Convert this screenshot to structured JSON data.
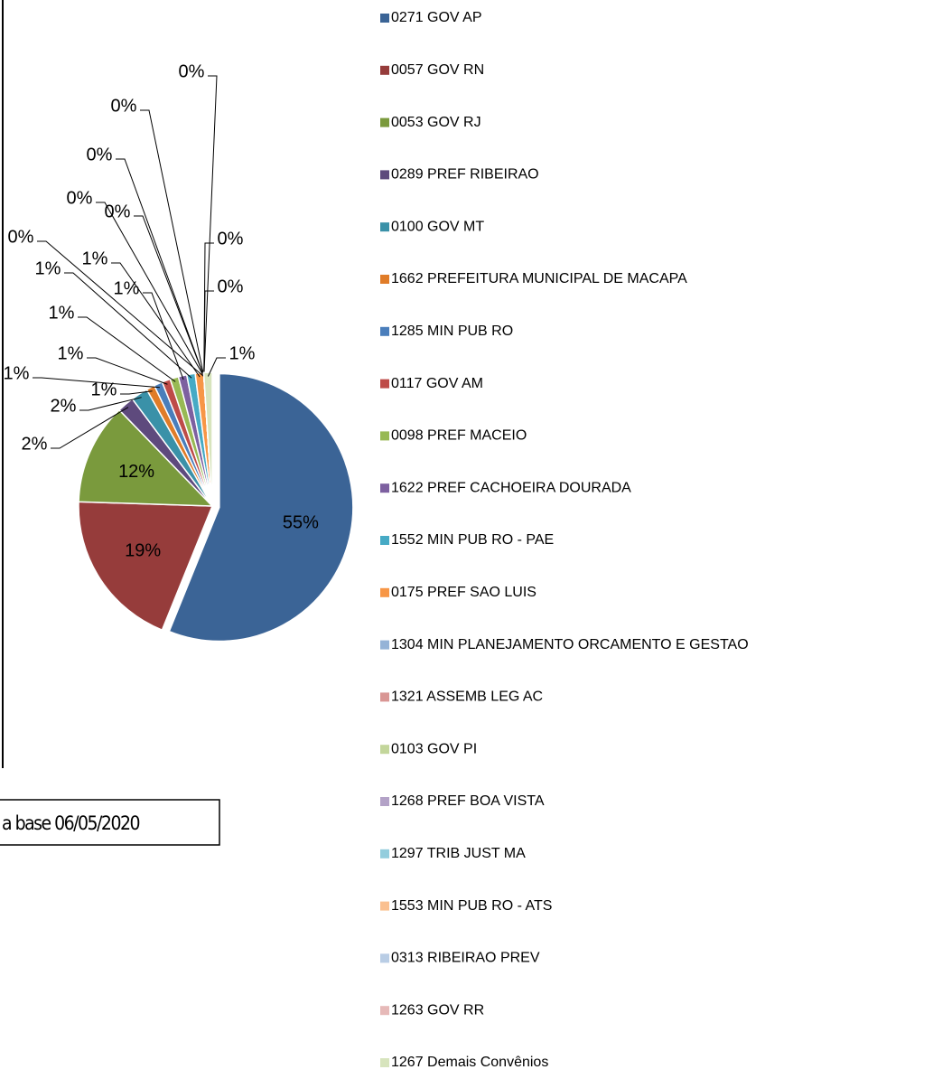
{
  "chart_data": {
    "type": "pie",
    "categories": [
      "0271 GOV AP",
      "0057 GOV RN",
      "0053 GOV RJ",
      "0289 PREF RIBEIRAO",
      "0100 GOV MT",
      "1662 PREFEITURA MUNICIPAL DE MACAPA",
      "1285 MIN PUB RO",
      "0117 GOV AM",
      "0098 PREF MACEIO",
      "1622 PREF CACHOEIRA DOURADA",
      "1552 MIN PUB RO - PAE",
      "0175 PREF SAO LUIS",
      "1304 MIN PLANEJAMENTO ORCAMENTO E GESTAO",
      "1321 ASSEMB LEG AC",
      "0103 GOV PI",
      "1268 PREF BOA VISTA",
      "1297 TRIB JUST MA",
      "1553 MIN PUB RO - ATS",
      "0313 RIBEIRAO PREV",
      "1263 GOV RR",
      "1267 Demais Convênios"
    ],
    "values": [
      55,
      19,
      12,
      2,
      2,
      1,
      1,
      1,
      1,
      1,
      1,
      1,
      0,
      0,
      0,
      0,
      0,
      0,
      0,
      0,
      1
    ],
    "value_labels": [
      "55%",
      "19%",
      "12%",
      "2%",
      "2%",
      "1%",
      "1%",
      "1%",
      "1%",
      "1%",
      "1%",
      "1%",
      "0%",
      "0%",
      "0%",
      "0%",
      "0%",
      "0%",
      "0%",
      "0%",
      "1%"
    ],
    "colors": [
      "#3b6496",
      "#963c3b",
      "#7a9a3d",
      "#5e4a7d",
      "#3a91a8",
      "#e07c28",
      "#4a7ebb",
      "#be4b48",
      "#98b954",
      "#7d60a0",
      "#46aac5",
      "#f79646",
      "#95b3d7",
      "#d99694",
      "#c3d69b",
      "#b3a2c7",
      "#93cddd",
      "#fac090",
      "#b9cde5",
      "#e6b9b8",
      "#d7e4bd"
    ],
    "note": "a base 06/05/2020"
  }
}
